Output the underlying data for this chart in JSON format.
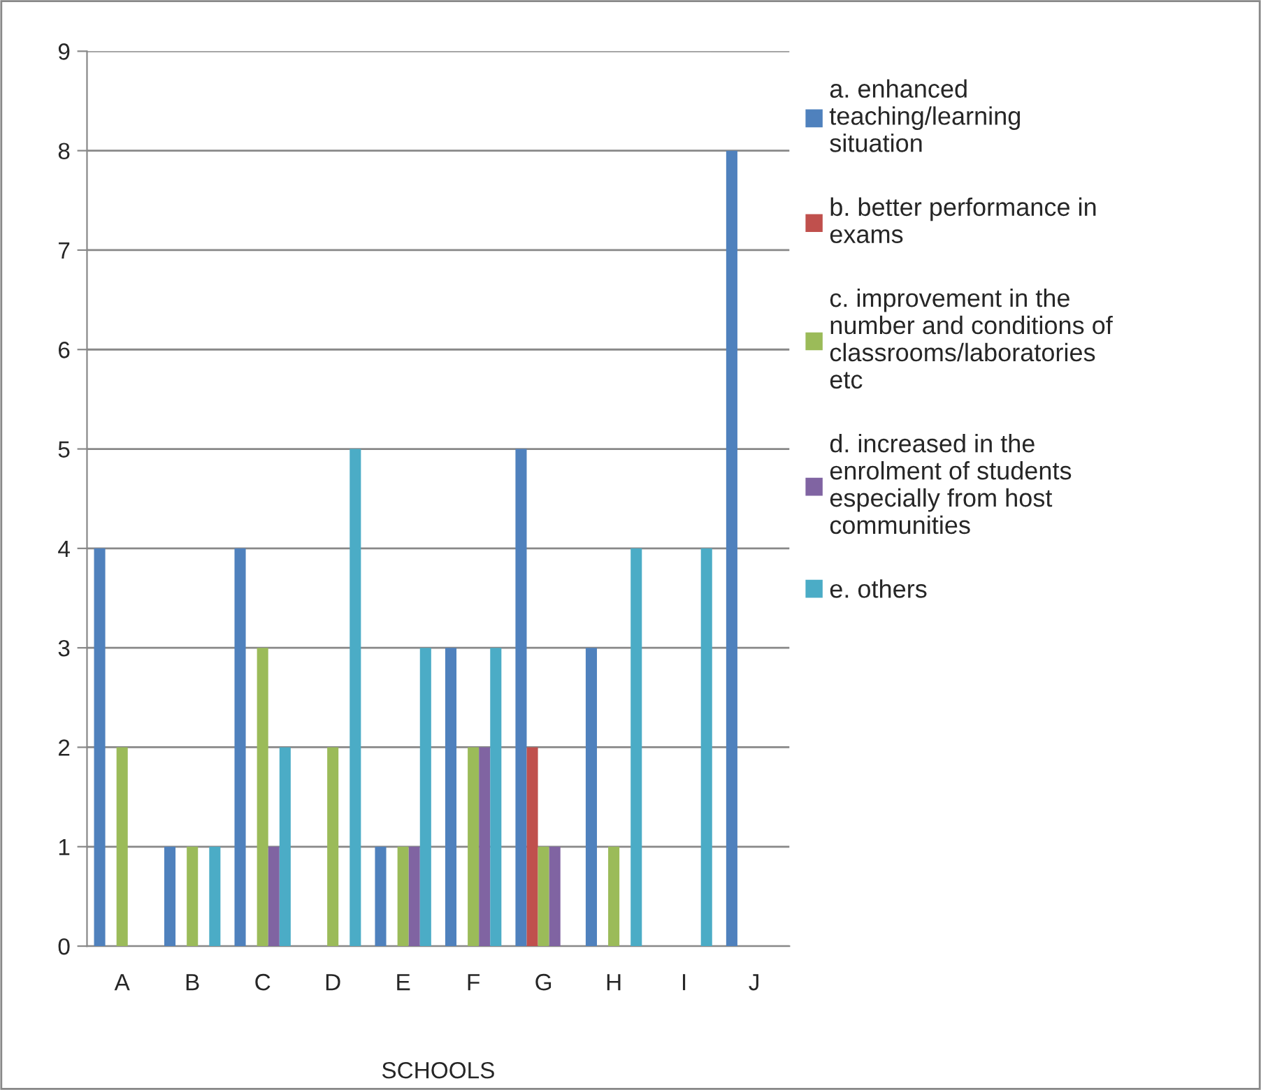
{
  "chart_data": {
    "type": "bar",
    "xlabel": "SCHOOLS",
    "categories": [
      "A",
      "B",
      "C",
      "D",
      "E",
      "F",
      "G",
      "H",
      "I",
      "J"
    ],
    "series": [
      {
        "name": "a. enhanced teaching/learning situation",
        "color": "#4f81bd",
        "values": [
          4,
          1,
          4,
          null,
          1,
          3,
          5,
          3,
          null,
          8
        ]
      },
      {
        "name": "b. better performance in exams",
        "color": "#c0504d",
        "values": [
          null,
          null,
          null,
          null,
          null,
          null,
          2,
          null,
          null,
          null
        ]
      },
      {
        "name": "c. improvement in the number and conditions of classrooms/laboratories etc",
        "color": "#9bbb59",
        "values": [
          2,
          1,
          3,
          2,
          1,
          2,
          1,
          1,
          null,
          null
        ]
      },
      {
        "name": "d. increased in the enrolment of students especially from host communities",
        "color": "#8064a2",
        "values": [
          null,
          null,
          1,
          null,
          1,
          2,
          1,
          null,
          null,
          null
        ]
      },
      {
        "name": "e. others",
        "color": "#4bacc6",
        "values": [
          null,
          1,
          2,
          5,
          3,
          3,
          null,
          4,
          4,
          null
        ]
      }
    ],
    "ylim": [
      0,
      9
    ],
    "yticks": [
      0,
      1,
      2,
      3,
      4,
      5,
      6,
      7,
      8,
      9
    ],
    "grid": "y",
    "legend": "right"
  }
}
